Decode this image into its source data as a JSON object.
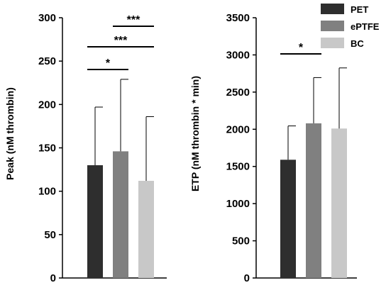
{
  "chart_data": [
    {
      "type": "bar",
      "ylabel": "Peak (nM thrombin)",
      "ylim": [
        0,
        300
      ],
      "yticks": [
        0,
        50,
        100,
        150,
        200,
        250,
        300
      ],
      "series": [
        {
          "name": "PET",
          "value": 130,
          "error": 67,
          "color": "#2e2e2e"
        },
        {
          "name": "ePTFE",
          "value": 146,
          "error": 83,
          "color": "#808080"
        },
        {
          "name": "BC",
          "value": 112,
          "error": 74,
          "color": "#c8c8c8"
        }
      ],
      "significance": [
        {
          "from": 0,
          "to": 1,
          "label": "*"
        },
        {
          "from": 0,
          "to": 2,
          "label": "***"
        },
        {
          "from": 1,
          "to": 2,
          "label": "***"
        }
      ],
      "error_bars": "upper-only",
      "grid": false
    },
    {
      "type": "bar",
      "ylabel": "ETP (nM thrombin * min)",
      "ylim": [
        0,
        3500
      ],
      "yticks": [
        0,
        500,
        1000,
        1500,
        2000,
        2500,
        3000,
        3500
      ],
      "series": [
        {
          "name": "PET",
          "value": 1590,
          "error": 455,
          "color": "#2e2e2e"
        },
        {
          "name": "ePTFE",
          "value": 2080,
          "error": 615,
          "color": "#808080"
        },
        {
          "name": "BC",
          "value": 2010,
          "error": 815,
          "color": "#c8c8c8"
        }
      ],
      "significance": [
        {
          "from": 0,
          "to": 1,
          "label": "*"
        }
      ],
      "error_bars": "upper-only",
      "grid": false
    }
  ],
  "legend": {
    "placement": "top-right",
    "items": [
      {
        "label": "PET",
        "color": "#2e2e2e"
      },
      {
        "label": "ePTFE",
        "color": "#808080"
      },
      {
        "label": "BC",
        "color": "#c8c8c8"
      }
    ]
  }
}
